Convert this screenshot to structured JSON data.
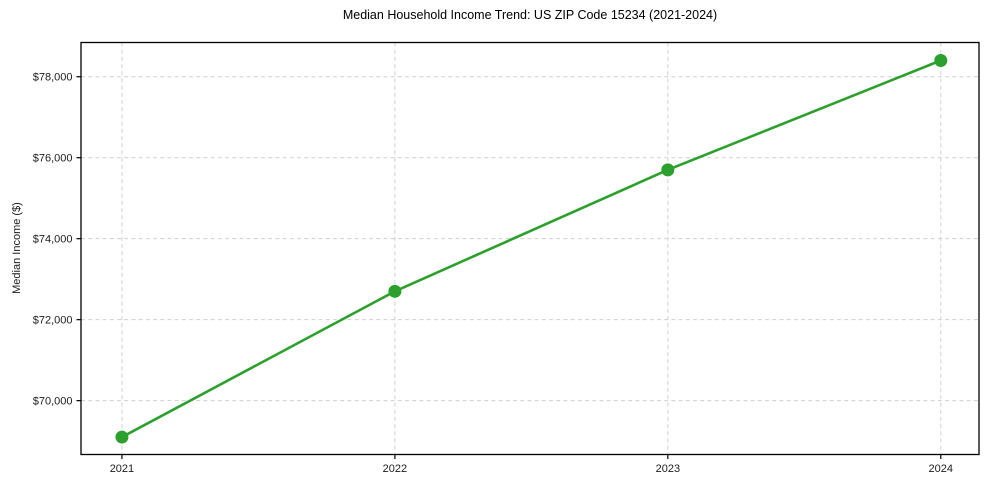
{
  "chart_data": {
    "type": "line",
    "title": "Median Household Income Trend: US ZIP Code 15234 (2021-2024)",
    "xlabel": "",
    "ylabel": "Median Income ($)",
    "x": [
      2021,
      2022,
      2023,
      2024
    ],
    "x_tick_labels": [
      "2021",
      "2022",
      "2023",
      "2024"
    ],
    "values": [
      69100,
      72700,
      75700,
      78400
    ],
    "y_ticks": {
      "values": [
        70000,
        72000,
        74000,
        76000,
        78000
      ],
      "labels": [
        "$70,000",
        "$72,000",
        "$74,000",
        "$76,000",
        "$78,000"
      ]
    },
    "xlim": [
      2020.85,
      2024.14
    ],
    "ylim": [
      68670,
      78845
    ],
    "grid": true,
    "grid_style": "dashed",
    "legend": "none",
    "colors": {
      "line": "#2ca02c",
      "marker": "#2ca02c",
      "grid": "#d0d0d0",
      "spine": "#000000",
      "text": "#1c1c1c",
      "background": "#ffffff"
    }
  }
}
